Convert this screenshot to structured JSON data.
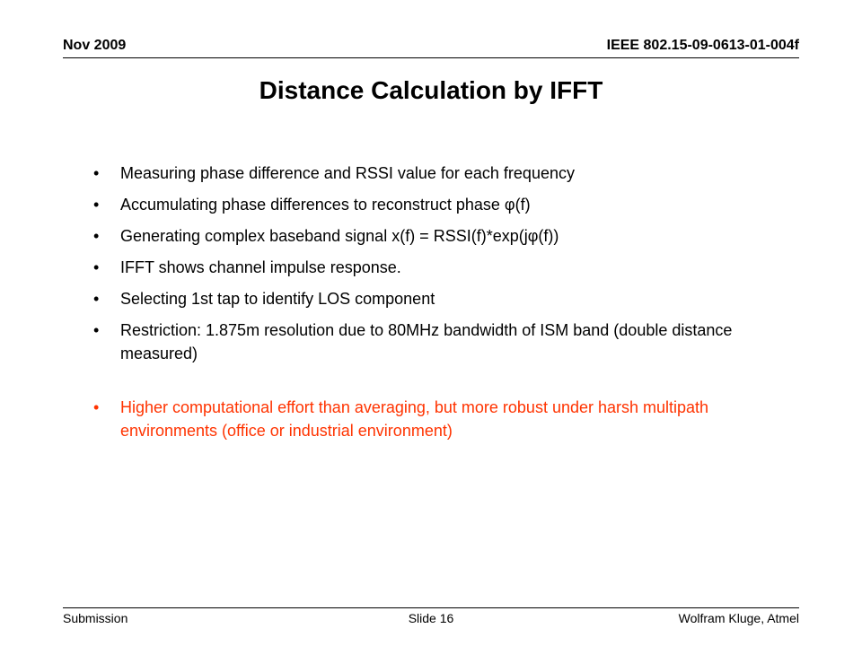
{
  "header": {
    "date": "Nov 2009",
    "doc_id": "IEEE 802.15-09-0613-01-004f"
  },
  "title": "Distance Calculation by IFFT",
  "bullets": [
    {
      "marker": "•",
      "text": "Measuring phase difference and RSSI value for each frequency"
    },
    {
      "marker": "•",
      "text": "Accumulating phase differences to reconstruct phase φ(f)"
    },
    {
      "marker": "•",
      "text": "Generating complex baseband signal x(f) = RSSI(f)*exp(jφ(f))"
    },
    {
      "marker": "•",
      "text": "IFFT shows channel impulse response."
    },
    {
      "marker": "•",
      "text": "Selecting 1st tap to identify LOS component"
    },
    {
      "marker": "•",
      "text": "Restriction: 1.875m resolution due to 80MHz bandwidth of ISM band (double distance measured)"
    },
    {
      "marker": "•",
      "text": "Higher computational effort than averaging, but more robust under harsh multipath environments (office or industrial environment)"
    }
  ],
  "footer": {
    "left": "Submission",
    "center": "Slide 16",
    "right": "Wolfram Kluge, Atmel"
  },
  "colors": {
    "highlight": "#ff3300"
  }
}
